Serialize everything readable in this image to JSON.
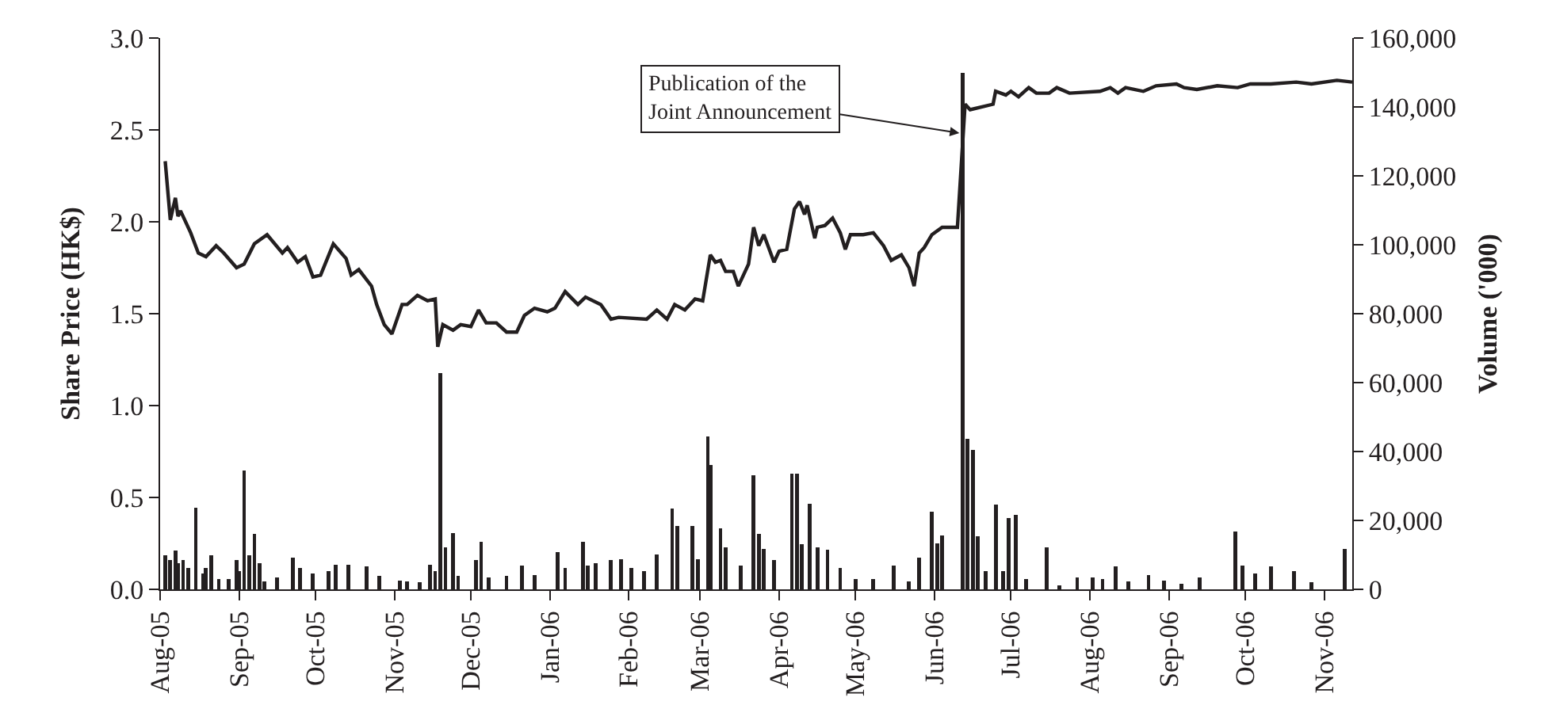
{
  "chart_data": {
    "type": "line",
    "ylabel": "Share Price (HK$)",
    "y2label": "Volume ('000)",
    "annotations": [
      {
        "text": "Publication of the\nJoint Announcement",
        "x": "2006-06-12",
        "y": 2.48
      }
    ],
    "xlim": [
      "2005-08-01",
      "2006-11-12"
    ],
    "xticks": [
      {
        "value": "2005-08-01",
        "label": "Aug-05"
      },
      {
        "value": "2005-09-01",
        "label": "Sep-05"
      },
      {
        "value": "2005-10-01",
        "label": "Oct-05"
      },
      {
        "value": "2005-11-01",
        "label": "Nov-05"
      },
      {
        "value": "2005-12-01",
        "label": "Dec-05"
      },
      {
        "value": "2006-01-01",
        "label": "Jan-06"
      },
      {
        "value": "2006-02-01",
        "label": "Feb-06"
      },
      {
        "value": "2006-03-01",
        "label": "Mar-06"
      },
      {
        "value": "2006-04-01",
        "label": "Apr-06"
      },
      {
        "value": "2006-05-01",
        "label": "May-06"
      },
      {
        "value": "2006-06-01",
        "label": "Jun-06"
      },
      {
        "value": "2006-07-01",
        "label": "Jul-06"
      },
      {
        "value": "2006-08-01",
        "label": "Aug-06"
      },
      {
        "value": "2006-09-01",
        "label": "Sep-06"
      },
      {
        "value": "2006-10-01",
        "label": "Oct-06"
      },
      {
        "value": "2006-11-01",
        "label": "Nov-06"
      }
    ],
    "ylim": [
      0,
      3
    ],
    "yticks": [
      {
        "value": 0,
        "label": "0.0"
      },
      {
        "value": 0.5,
        "label": "0.5"
      },
      {
        "value": 1,
        "label": "1.0"
      },
      {
        "value": 1.5,
        "label": "1.5"
      },
      {
        "value": 2,
        "label": "2.0"
      },
      {
        "value": 2.5,
        "label": "2.5"
      },
      {
        "value": 3,
        "label": "3.0"
      }
    ],
    "y2lim": [
      0,
      160000
    ],
    "y2ticks": [
      {
        "value": 0,
        "label": "0"
      },
      {
        "value": 20000,
        "label": "20,000"
      },
      {
        "value": 40000,
        "label": "40,000"
      },
      {
        "value": 60000,
        "label": "60,000"
      },
      {
        "value": 80000,
        "label": "80,000"
      },
      {
        "value": 100000,
        "label": "100,000"
      },
      {
        "value": 120000,
        "label": "120,000"
      },
      {
        "value": 140000,
        "label": "140,000"
      },
      {
        "value": 160000,
        "label": "160,000"
      }
    ],
    "grid": false,
    "marker": "none",
    "line_style": "solid",
    "series": [
      {
        "type": "bar",
        "axis": "y2",
        "color": "#231f20",
        "x": [
          "2005-08-03",
          "2005-08-05",
          "2005-08-07",
          "2005-08-08",
          "2005-08-10",
          "2005-08-12",
          "2005-08-15",
          "2005-08-18",
          "2005-08-19",
          "2005-08-21",
          "2005-08-24",
          "2005-08-28",
          "2005-08-31",
          "2005-09-01",
          "2005-09-03",
          "2005-09-05",
          "2005-09-07",
          "2005-09-09",
          "2005-09-11",
          "2005-09-16",
          "2005-09-22",
          "2005-09-25",
          "2005-09-30",
          "2005-10-06",
          "2005-10-09",
          "2005-10-14",
          "2005-10-21",
          "2005-10-26",
          "2005-11-03",
          "2005-11-06",
          "2005-11-11",
          "2005-11-15",
          "2005-11-17",
          "2005-11-19",
          "2005-11-21",
          "2005-11-24",
          "2005-11-26",
          "2005-12-03",
          "2005-12-05",
          "2005-12-08",
          "2005-12-15",
          "2005-12-21",
          "2005-12-26",
          "2006-01-04",
          "2006-01-07",
          "2006-01-14",
          "2006-01-16",
          "2006-01-19",
          "2006-01-25",
          "2006-01-29",
          "2006-02-02",
          "2006-02-07",
          "2006-02-12",
          "2006-02-18",
          "2006-02-20",
          "2006-02-26",
          "2006-02-28",
          "2006-03-04",
          "2006-03-05",
          "2006-03-09",
          "2006-03-11",
          "2006-03-17",
          "2006-03-22",
          "2006-03-24",
          "2006-03-26",
          "2006-03-30",
          "2006-04-06",
          "2006-04-08",
          "2006-04-10",
          "2006-04-13",
          "2006-04-16",
          "2006-04-20",
          "2006-04-25",
          "2006-05-01",
          "2006-05-08",
          "2006-05-16",
          "2006-05-22",
          "2006-05-26",
          "2006-05-31",
          "2006-06-02",
          "2006-06-04",
          "2006-06-12",
          "2006-06-14",
          "2006-06-16",
          "2006-06-18",
          "2006-06-21",
          "2006-06-25",
          "2006-06-28",
          "2006-06-30",
          "2006-07-03",
          "2006-07-07",
          "2006-07-15",
          "2006-07-20",
          "2006-07-27",
          "2006-08-02",
          "2006-08-06",
          "2006-08-11",
          "2006-08-16",
          "2006-08-24",
          "2006-08-30",
          "2006-09-06",
          "2006-09-13",
          "2006-09-27",
          "2006-09-30",
          "2006-10-05",
          "2006-10-11",
          "2006-10-20",
          "2006-10-27",
          "2006-11-09"
        ],
        "values": [
          9900,
          8400,
          11200,
          7600,
          8400,
          6100,
          23700,
          4600,
          6100,
          9900,
          3000,
          3000,
          8400,
          5400,
          34400,
          9900,
          16100,
          7600,
          2300,
          3500,
          9200,
          6100,
          4600,
          5400,
          7200,
          7200,
          6600,
          3800,
          2600,
          2300,
          2000,
          7200,
          5400,
          62700,
          12200,
          16400,
          3800,
          8400,
          13800,
          3500,
          3800,
          6900,
          4100,
          10700,
          6100,
          13800,
          6900,
          7600,
          8400,
          8700,
          6100,
          5400,
          10200,
          23400,
          18300,
          18300,
          8700,
          44300,
          36200,
          17600,
          12200,
          6900,
          33200,
          16100,
          11800,
          8400,
          33600,
          33600,
          13000,
          24900,
          12200,
          11500,
          6100,
          3000,
          3000,
          6900,
          2300,
          9200,
          22600,
          13300,
          15700,
          150000,
          43600,
          40500,
          15300,
          5400,
          24500,
          5400,
          20600,
          21700,
          3000,
          12200,
          1100,
          3500,
          3500,
          3000,
          6600,
          2300,
          4100,
          2600,
          1500,
          3500,
          16800,
          6900,
          4600,
          6600,
          5400,
          2000,
          11800
        ]
      },
      {
        "color": "#231f20",
        "x": [
          "2005-08-03",
          "2005-08-05",
          "2005-08-07",
          "2005-08-08",
          "2005-08-09",
          "2005-08-13",
          "2005-08-16",
          "2005-08-19",
          "2005-08-23",
          "2005-08-26",
          "2005-08-31",
          "2005-09-03",
          "2005-09-07",
          "2005-09-12",
          "2005-09-18",
          "2005-09-20",
          "2005-09-24",
          "2005-09-27",
          "2005-09-30",
          "2005-10-03",
          "2005-10-08",
          "2005-10-13",
          "2005-10-15",
          "2005-10-18",
          "2005-10-23",
          "2005-10-25",
          "2005-10-28",
          "2005-10-31",
          "2005-11-04",
          "2005-11-06",
          "2005-11-10",
          "2005-11-14",
          "2005-11-17",
          "2005-11-18",
          "2005-11-20",
          "2005-11-24",
          "2005-11-27",
          "2005-12-01",
          "2005-12-04",
          "2005-12-07",
          "2005-12-11",
          "2005-12-15",
          "2005-12-19",
          "2005-12-22",
          "2005-12-26",
          "2005-12-31",
          "2006-01-03",
          "2006-01-07",
          "2006-01-12",
          "2006-01-15",
          "2006-01-21",
          "2006-01-25",
          "2006-01-28",
          "2006-02-08",
          "2006-02-12",
          "2006-02-16",
          "2006-02-19",
          "2006-02-23",
          "2006-02-27",
          "2006-03-02",
          "2006-03-05",
          "2006-03-07",
          "2006-03-09",
          "2006-03-11",
          "2006-03-14",
          "2006-03-16",
          "2006-03-20",
          "2006-03-22",
          "2006-03-24",
          "2006-03-26",
          "2006-03-30",
          "2006-04-01",
          "2006-04-04",
          "2006-04-07",
          "2006-04-09",
          "2006-04-11",
          "2006-04-12",
          "2006-04-15",
          "2006-04-16",
          "2006-04-19",
          "2006-04-22",
          "2006-04-25",
          "2006-04-27",
          "2006-04-29",
          "2006-05-04",
          "2006-05-08",
          "2006-05-12",
          "2006-05-15",
          "2006-05-19",
          "2006-05-22",
          "2006-05-24",
          "2006-05-26",
          "2006-05-28",
          "2006-05-31",
          "2006-06-04",
          "2006-06-10",
          "2006-06-13",
          "2006-06-15",
          "2006-06-24",
          "2006-06-25",
          "2006-06-29",
          "2006-07-01",
          "2006-07-04",
          "2006-07-08",
          "2006-07-11",
          "2006-07-16",
          "2006-07-19",
          "2006-07-24",
          "2006-08-05",
          "2006-08-09",
          "2006-08-12",
          "2006-08-15",
          "2006-08-22",
          "2006-08-27",
          "2006-09-04",
          "2006-09-07",
          "2006-09-12",
          "2006-09-20",
          "2006-09-28",
          "2006-10-03",
          "2006-10-11",
          "2006-10-21",
          "2006-10-27",
          "2006-11-06",
          "2006-11-12"
        ],
        "values": [
          2.33,
          2.01,
          2.13,
          2.03,
          2.06,
          1.94,
          1.83,
          1.81,
          1.87,
          1.83,
          1.75,
          1.77,
          1.88,
          1.93,
          1.83,
          1.86,
          1.78,
          1.81,
          1.7,
          1.71,
          1.88,
          1.8,
          1.71,
          1.74,
          1.65,
          1.55,
          1.44,
          1.39,
          1.55,
          1.55,
          1.6,
          1.57,
          1.58,
          1.32,
          1.44,
          1.41,
          1.44,
          1.43,
          1.52,
          1.45,
          1.45,
          1.4,
          1.4,
          1.49,
          1.53,
          1.51,
          1.53,
          1.62,
          1.55,
          1.59,
          1.55,
          1.47,
          1.48,
          1.47,
          1.52,
          1.47,
          1.55,
          1.52,
          1.58,
          1.57,
          1.82,
          1.78,
          1.79,
          1.73,
          1.73,
          1.65,
          1.77,
          1.97,
          1.87,
          1.93,
          1.78,
          1.84,
          1.85,
          2.07,
          2.11,
          2.04,
          2.09,
          1.91,
          1.97,
          1.98,
          2.02,
          1.94,
          1.85,
          1.93,
          1.93,
          1.94,
          1.87,
          1.79,
          1.82,
          1.75,
          1.65,
          1.83,
          1.86,
          1.93,
          1.97,
          1.97,
          2.64,
          2.61,
          2.64,
          2.71,
          2.69,
          2.71,
          2.68,
          2.73,
          2.7,
          2.7,
          2.73,
          2.7,
          2.71,
          2.73,
          2.7,
          2.73,
          2.71,
          2.74,
          2.75,
          2.73,
          2.72,
          2.74,
          2.73,
          2.75,
          2.75,
          2.76,
          2.75,
          2.77,
          2.76
        ]
      }
    ]
  }
}
